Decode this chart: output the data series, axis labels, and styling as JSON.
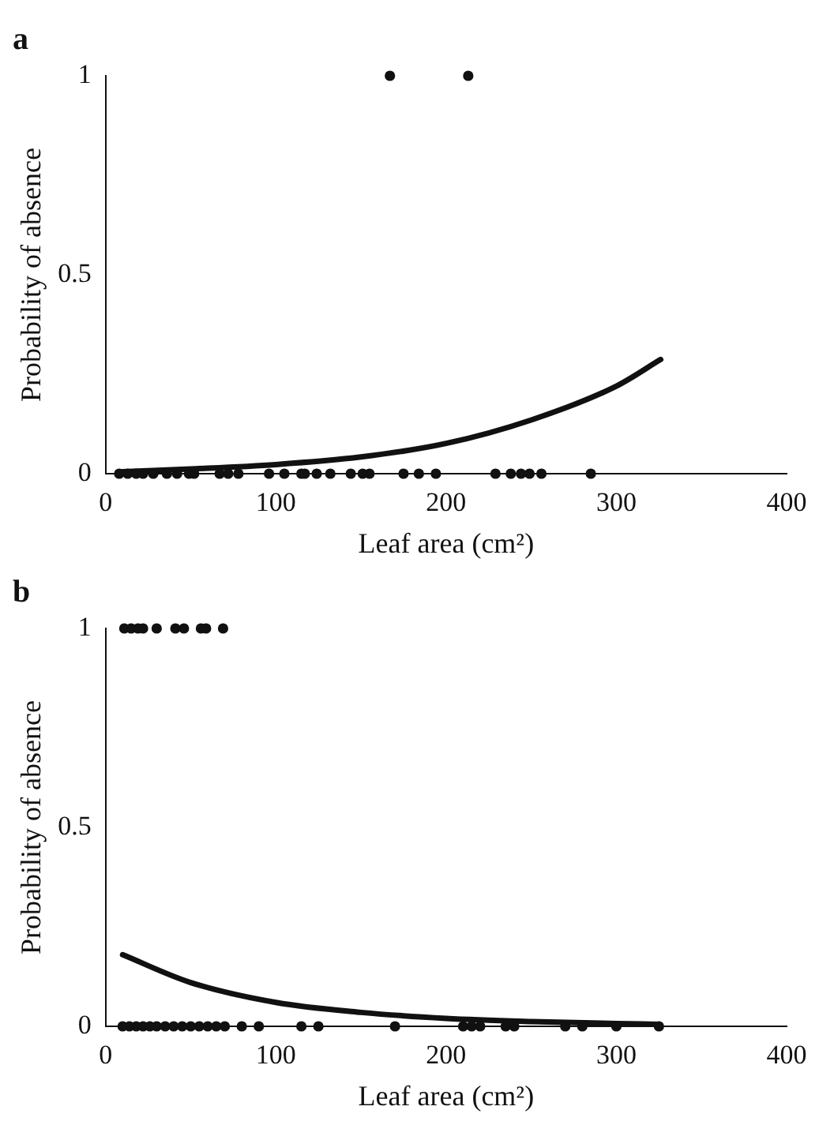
{
  "chart_data": [
    {
      "type": "scatter",
      "title": "a",
      "xlabel": "Leaf area (cm²)",
      "ylabel": "Probability of absence",
      "xlim": [
        0,
        400
      ],
      "xticks": [
        0,
        100,
        200,
        300,
        400
      ],
      "ylim": [
        0,
        1
      ],
      "yticks": [
        0,
        0.5,
        1
      ],
      "grid": false,
      "legend": false,
      "series": [
        {
          "marker": "circle",
          "color": "#111111",
          "x": [
            8,
            13,
            18,
            22,
            28,
            36,
            42,
            49,
            52,
            67,
            72,
            78,
            96,
            105,
            115,
            117,
            124,
            132,
            144,
            151,
            155,
            175,
            184,
            194,
            229,
            238,
            244,
            249,
            256,
            285,
            167,
            213
          ],
          "values": [
            0,
            0,
            0,
            0,
            0,
            0,
            0,
            0,
            0,
            0,
            0,
            0,
            0,
            0,
            0,
            0,
            0,
            0,
            0,
            0,
            0,
            0,
            0,
            0,
            0,
            0,
            0,
            0,
            0,
            0,
            1,
            1
          ]
        },
        {
          "type": "line",
          "marker": "none",
          "color": "#111111",
          "x": [
            10,
            50,
            100,
            150,
            200,
            250,
            300,
            326
          ],
          "values": [
            0.005,
            0.012,
            0.023,
            0.042,
            0.076,
            0.135,
            0.22,
            0.287
          ]
        }
      ]
    },
    {
      "type": "scatter",
      "title": "b",
      "xlabel": "Leaf area (cm²)",
      "ylabel": "Probability of absence",
      "xlim": [
        0,
        400
      ],
      "xticks": [
        0,
        100,
        200,
        300,
        400
      ],
      "ylim": [
        0,
        1
      ],
      "yticks": [
        0,
        0.5,
        1
      ],
      "grid": false,
      "legend": false,
      "series": [
        {
          "marker": "circle",
          "color": "#111111",
          "x": [
            10,
            14,
            18,
            22,
            26,
            30,
            35,
            40,
            45,
            50,
            55,
            60,
            65,
            70,
            80,
            90,
            115,
            125,
            170,
            210,
            215,
            220,
            235,
            240,
            270,
            280,
            300,
            325,
            11,
            15,
            19,
            22,
            30,
            41,
            46,
            56,
            59,
            69
          ],
          "values": [
            0,
            0,
            0,
            0,
            0,
            0,
            0,
            0,
            0,
            0,
            0,
            0,
            0,
            0,
            0,
            0,
            0,
            0,
            0,
            0,
            0,
            0,
            0,
            0,
            0,
            0,
            0,
            0,
            1,
            1,
            1,
            1,
            1,
            1,
            1,
            1,
            1,
            1
          ]
        },
        {
          "type": "line",
          "marker": "none",
          "color": "#111111",
          "x": [
            10,
            50,
            100,
            150,
            200,
            250,
            300,
            325
          ],
          "values": [
            0.18,
            0.11,
            0.06,
            0.035,
            0.02,
            0.012,
            0.007,
            0.005
          ]
        }
      ]
    }
  ]
}
